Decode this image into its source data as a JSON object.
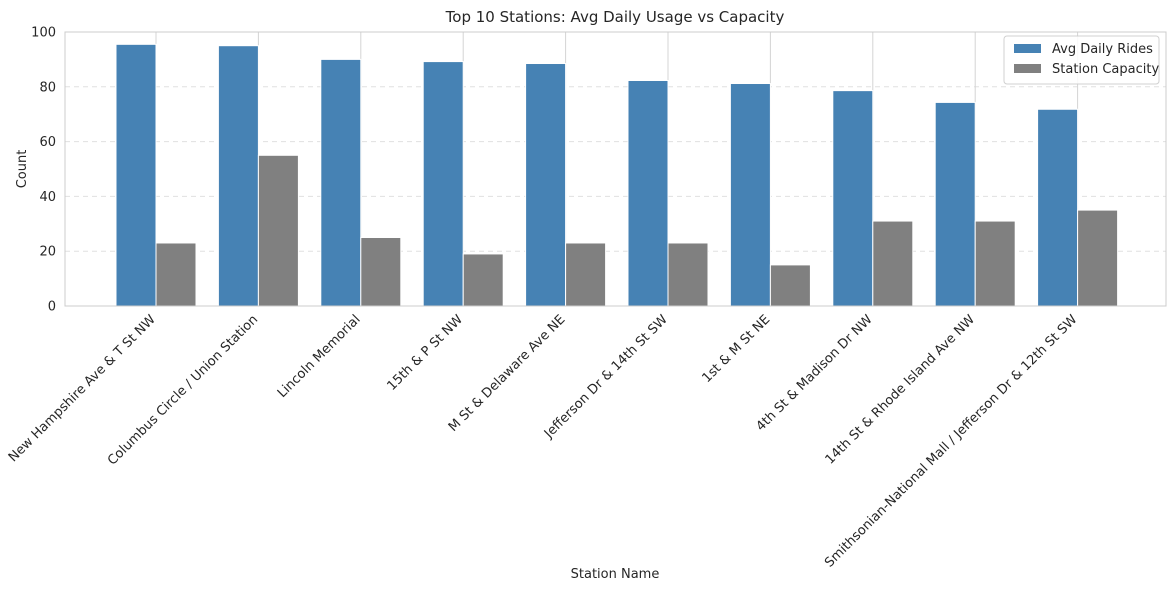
{
  "chart_data": {
    "type": "bar",
    "title": "Top 10 Stations: Avg Daily Usage vs Capacity",
    "xlabel": "Station Name",
    "ylabel": "Count",
    "ylim": [
      0,
      100
    ],
    "yticks": [
      0,
      20,
      40,
      60,
      80,
      100
    ],
    "grid": true,
    "legend_position": "top-right",
    "categories": [
      "New Hampshire Ave & T St NW",
      "Columbus Circle / Union Station",
      "Lincoln Memorial",
      "15th & P St NW",
      "M St & Delaware Ave NE",
      "Jefferson Dr & 14th St SW",
      "1st & M St NE",
      "4th St & Madison Dr NW",
      "14th St & Rhode Island Ave NW",
      "Smithsonian-National Mall / Jefferson Dr & 12th St SW"
    ],
    "series": [
      {
        "name": "Avg Daily Rides",
        "color": "#4682b4",
        "values": [
          95.5,
          95.0,
          90.0,
          89.2,
          88.5,
          82.3,
          81.2,
          78.6,
          74.3,
          71.8
        ]
      },
      {
        "name": "Station Capacity",
        "color": "#808080",
        "values": [
          23,
          55,
          25,
          19,
          23,
          23,
          15,
          31,
          31,
          35
        ]
      }
    ]
  }
}
